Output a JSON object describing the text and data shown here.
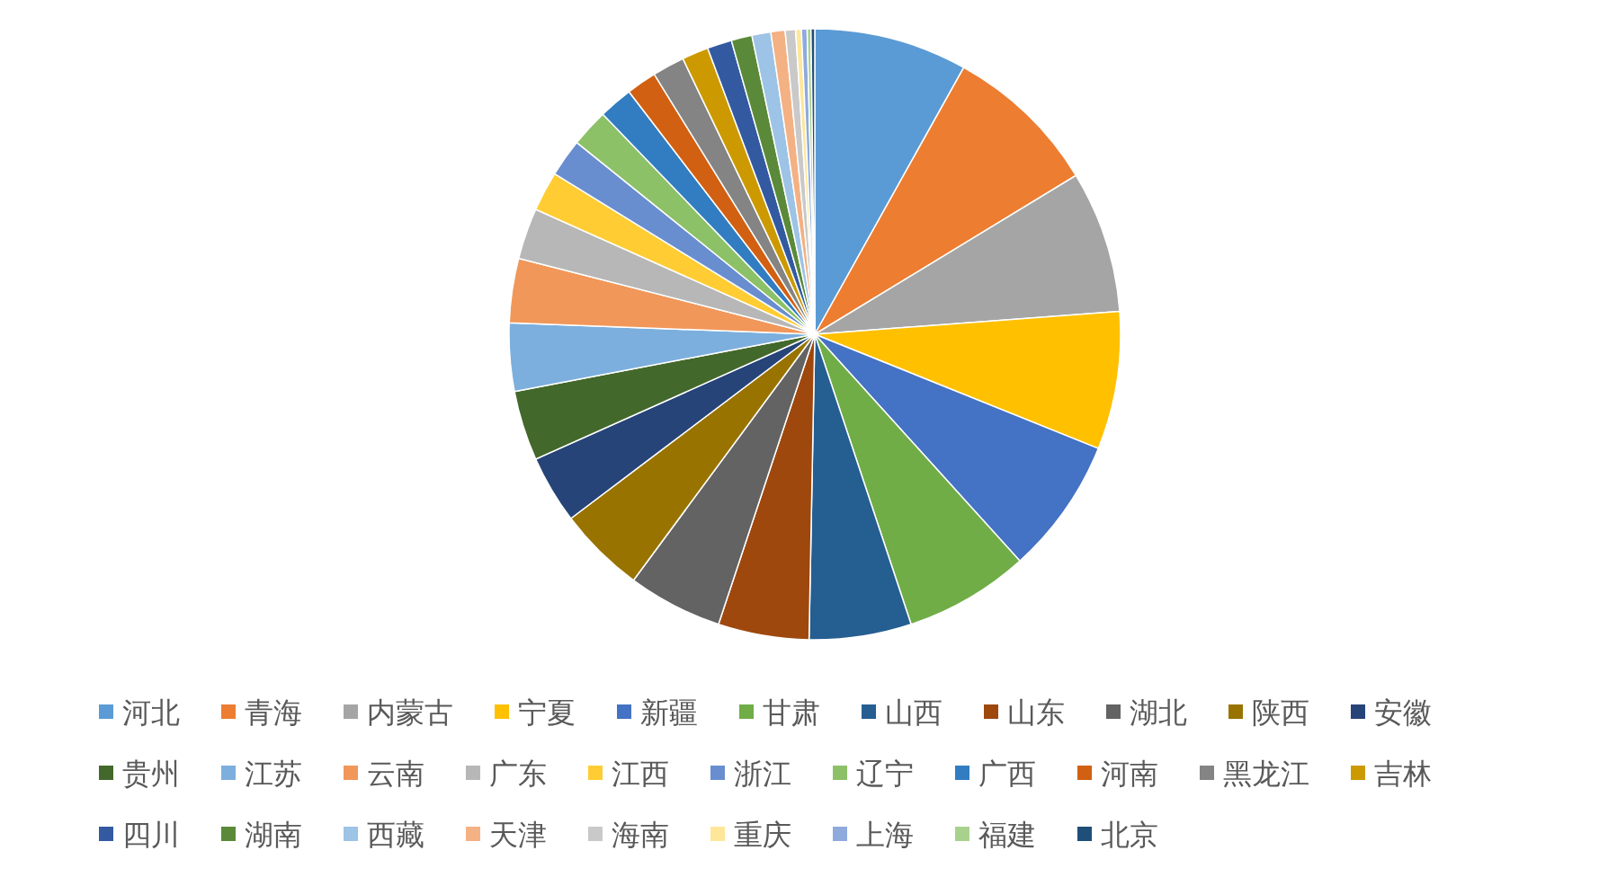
{
  "chart_data": {
    "type": "pie",
    "legend": "bottom",
    "categories": [
      "河北",
      "青海",
      "内蒙古",
      "宁夏",
      "新疆",
      "甘肃",
      "山西",
      "山东",
      "湖北",
      "陕西",
      "安徽",
      "贵州",
      "江苏",
      "云南",
      "广东",
      "江西",
      "浙江",
      "辽宁",
      "广西",
      "河南",
      "黑龙江",
      "吉林",
      "四川",
      "湖南",
      "西藏",
      "天津",
      "海南",
      "重庆",
      "上海",
      "福建",
      "北京"
    ],
    "values": [
      8.1,
      8.2,
      7.5,
      7.3,
      7.2,
      6.6,
      5.4,
      4.8,
      5.0,
      4.6,
      3.6,
      3.7,
      3.6,
      3.4,
      2.7,
      2.1,
      2.0,
      2.0,
      1.8,
      1.6,
      1.7,
      1.4,
      1.3,
      1.1,
      1.0,
      0.75,
      0.55,
      0.3,
      0.3,
      0.2,
      0.2
    ],
    "colors": [
      "#5b9bd5",
      "#ed7d31",
      "#a5a5a5",
      "#ffc000",
      "#4472c4",
      "#70ad47",
      "#255e91",
      "#9e480e",
      "#636363",
      "#997300",
      "#264478",
      "#43682b",
      "#7cafdd",
      "#f1975a",
      "#b7b7b7",
      "#ffcd33",
      "#698ed0",
      "#8cc168",
      "#327dc2",
      "#d26012",
      "#848484",
      "#cc9a00",
      "#335aa1",
      "#5a8a39",
      "#9dc3e6",
      "#f4b183",
      "#c9c9c9",
      "#ffe699",
      "#8faadc",
      "#a9d18e",
      "#1f4e79"
    ]
  }
}
